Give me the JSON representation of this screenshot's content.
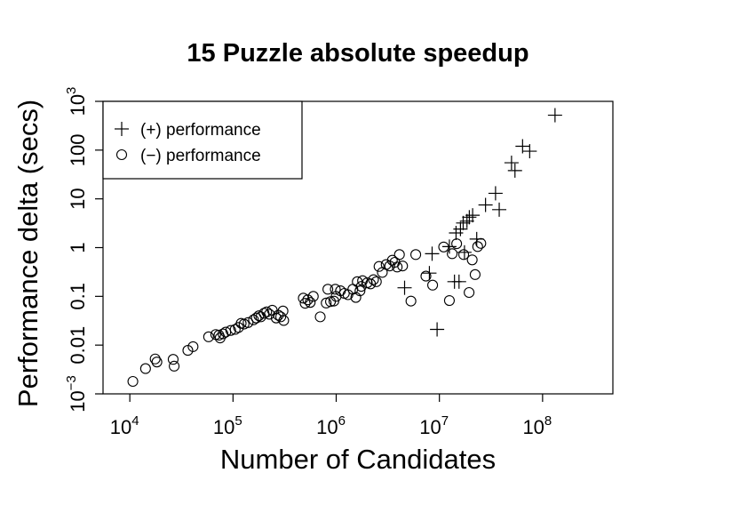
{
  "chart_data": {
    "type": "scatter",
    "title": "15 Puzzle absolute speedup",
    "xlabel": "Number of Candidates",
    "ylabel": "Performance delta (secs)",
    "x_scale": "log",
    "y_scale": "log",
    "xlim": [
      5500,
      480000000
    ],
    "ylim": [
      0.001,
      1000
    ],
    "x_ticks": [
      {
        "value": 10000,
        "base": "10",
        "exp": "4"
      },
      {
        "value": 100000,
        "base": "10",
        "exp": "5"
      },
      {
        "value": 1000000,
        "base": "10",
        "exp": "6"
      },
      {
        "value": 10000000,
        "base": "10",
        "exp": "7"
      },
      {
        "value": 100000000,
        "base": "10",
        "exp": "8"
      }
    ],
    "y_ticks": [
      {
        "value": 0.001,
        "base": "10",
        "exp": "−3"
      },
      {
        "value": 0.01,
        "base": "0.01",
        "exp": ""
      },
      {
        "value": 0.1,
        "base": "0.1",
        "exp": ""
      },
      {
        "value": 1,
        "base": "1",
        "exp": ""
      },
      {
        "value": 10,
        "base": "10",
        "exp": ""
      },
      {
        "value": 100,
        "base": "100",
        "exp": ""
      },
      {
        "value": 1000,
        "base": "10",
        "exp": "3"
      }
    ],
    "grid": false,
    "legend_position": "top-left",
    "series": [
      {
        "name": "(+) performance",
        "marker": "plus",
        "points": [
          [
            4600000.0,
            0.15
          ],
          [
            8000000.0,
            0.3
          ],
          [
            8500000.0,
            0.75
          ],
          [
            9500000.0,
            0.021
          ],
          [
            12500000.0,
            1.05
          ],
          [
            14000000.0,
            0.2
          ],
          [
            15500000.0,
            0.2
          ],
          [
            17500000.0,
            0.8
          ],
          [
            14500000.0,
            2.0
          ],
          [
            16000000.0,
            2.4
          ],
          [
            17000000.0,
            3.2
          ],
          [
            18500000.0,
            3.5
          ],
          [
            19500000.0,
            4.2
          ],
          [
            21000000.0,
            4.6
          ],
          [
            23000000.0,
            1.5
          ],
          [
            28000000.0,
            7.5
          ],
          [
            35000000.0,
            13
          ],
          [
            38000000.0,
            6.0
          ],
          [
            50000000.0,
            55
          ],
          [
            54000000.0,
            38
          ],
          [
            64000000.0,
            120
          ],
          [
            75000000.0,
            95
          ],
          [
            132000000.0,
            520
          ]
        ]
      },
      {
        "name": "(−) performance",
        "marker": "circle",
        "points": [
          [
            10700,
            0.0018
          ],
          [
            14200,
            0.0033
          ],
          [
            17600,
            0.0052
          ],
          [
            18300,
            0.0045
          ],
          [
            26300,
            0.0051
          ],
          [
            26900,
            0.0037
          ],
          [
            36500,
            0.0078
          ],
          [
            41000,
            0.0093
          ],
          [
            58000,
            0.0148
          ],
          [
            68000,
            0.0165
          ],
          [
            73000,
            0.016
          ],
          [
            75000,
            0.014
          ],
          [
            80000,
            0.017
          ],
          [
            85000,
            0.0185
          ],
          [
            95000,
            0.02
          ],
          [
            105000,
            0.021
          ],
          [
            113000,
            0.023
          ],
          [
            120000,
            0.028
          ],
          [
            128000,
            0.027
          ],
          [
            140000,
            0.029
          ],
          [
            158000,
            0.033
          ],
          [
            168000,
            0.036
          ],
          [
            178000,
            0.04
          ],
          [
            186000,
            0.038
          ],
          [
            200000,
            0.045
          ],
          [
            212000,
            0.048
          ],
          [
            225000,
            0.043
          ],
          [
            240000,
            0.052
          ],
          [
            262000,
            0.036
          ],
          [
            275000,
            0.041
          ],
          [
            290000,
            0.038
          ],
          [
            305000,
            0.05
          ],
          [
            310000,
            0.032
          ],
          [
            480000,
            0.092
          ],
          [
            500000,
            0.072
          ],
          [
            530000,
            0.085
          ],
          [
            560000,
            0.075
          ],
          [
            600000,
            0.1
          ],
          [
            700000,
            0.038
          ],
          [
            800000,
            0.073
          ],
          [
            830000,
            0.14
          ],
          [
            880000,
            0.078
          ],
          [
            950000,
            0.08
          ],
          [
            980000,
            0.14
          ],
          [
            1000000,
            0.1
          ],
          [
            1100000,
            0.13
          ],
          [
            1200000,
            0.115
          ],
          [
            1300000,
            0.108
          ],
          [
            1450000,
            0.14
          ],
          [
            1550000,
            0.095
          ],
          [
            1600000,
            0.2
          ],
          [
            1700000,
            0.13
          ],
          [
            1750000,
            0.16
          ],
          [
            1800000,
            0.21
          ],
          [
            2000000,
            0.19
          ],
          [
            2150000,
            0.18
          ],
          [
            2300000,
            0.22
          ],
          [
            2450000,
            0.2
          ],
          [
            2600000,
            0.41
          ],
          [
            2800000,
            0.31
          ],
          [
            3050000,
            0.45
          ],
          [
            3300000,
            0.42
          ],
          [
            3500000,
            0.55
          ],
          [
            3700000,
            0.5
          ],
          [
            3900000,
            0.4
          ],
          [
            4100000,
            0.72
          ],
          [
            4400000,
            0.42
          ],
          [
            5300000,
            0.08
          ],
          [
            5900000,
            0.72
          ],
          [
            7400000,
            0.26
          ],
          [
            8600000,
            0.17
          ],
          [
            11000000,
            1.03
          ],
          [
            12500000,
            0.082
          ],
          [
            13300000,
            0.75
          ],
          [
            14700000,
            1.2
          ],
          [
            17200000,
            0.72
          ],
          [
            19400000,
            0.12
          ],
          [
            20800000,
            0.56
          ],
          [
            22200000,
            0.28
          ],
          [
            23500000,
            1.05
          ],
          [
            25200000,
            1.22
          ]
        ]
      }
    ]
  }
}
